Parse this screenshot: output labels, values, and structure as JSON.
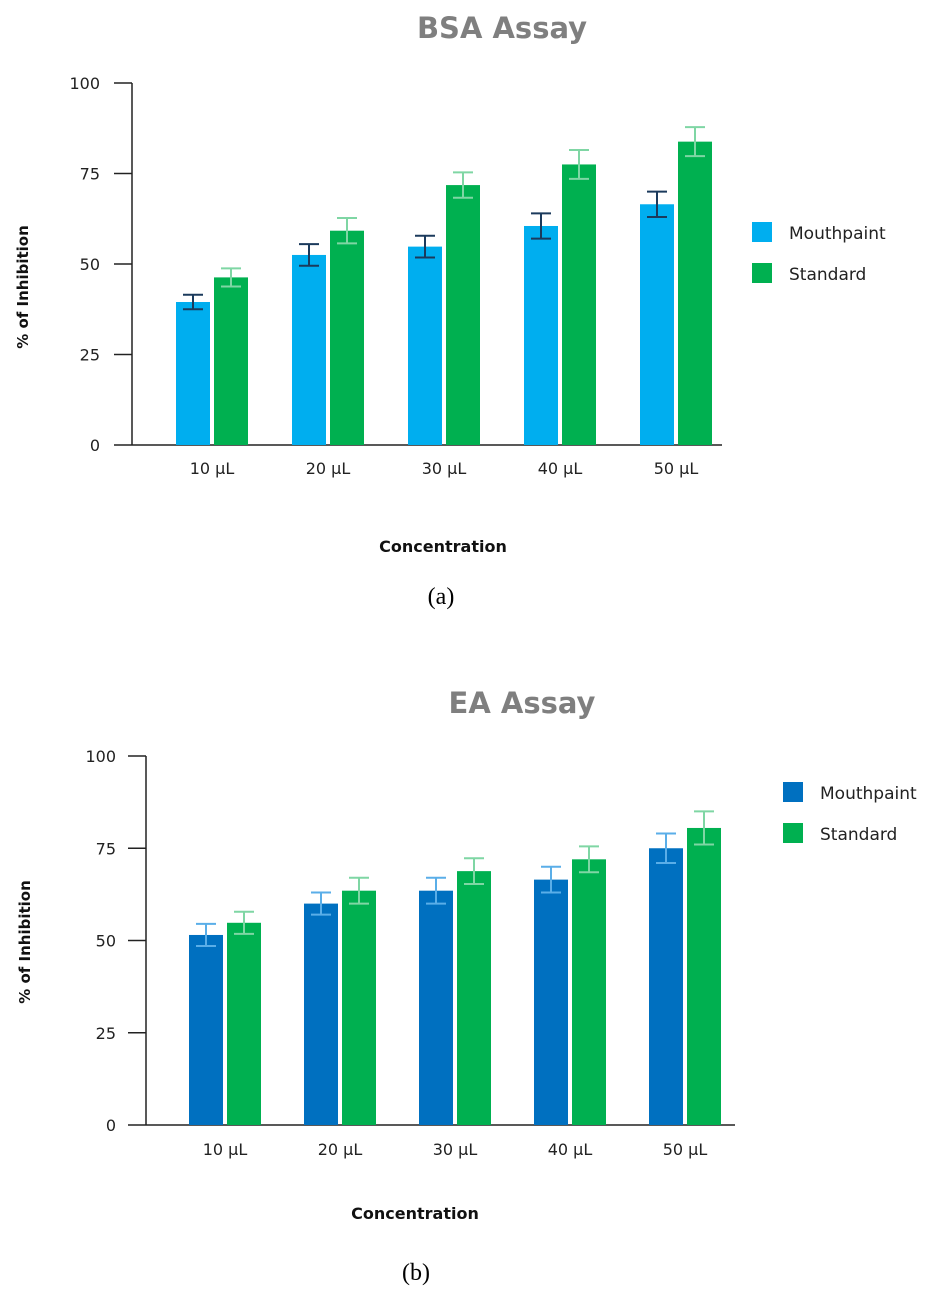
{
  "chart_data": [
    {
      "type": "bar",
      "title": "BSA Assay",
      "xlabel": "Concentration",
      "ylabel": "% of Inhibition",
      "ylim": [
        0,
        100
      ],
      "yticks": [
        0,
        25,
        50,
        75,
        100
      ],
      "categories": [
        "10 µL",
        "20 µL",
        "30 µL",
        "40 µL",
        "50 µL"
      ],
      "series": [
        {
          "name": "Mouthpaint",
          "color": "#00aeef",
          "error_color": "#1b3a5c",
          "values": [
            39.5,
            52.5,
            54.8,
            60.5,
            66.5
          ],
          "errors": [
            2.0,
            3.0,
            3.0,
            3.5,
            3.5
          ]
        },
        {
          "name": "Standard",
          "color": "#00b050",
          "error_color": "#7fd6a4",
          "values": [
            46.3,
            59.2,
            71.8,
            77.5,
            83.8
          ],
          "errors": [
            2.5,
            3.5,
            3.5,
            4.0,
            4.0
          ]
        }
      ],
      "grid": false,
      "legend_position": "right",
      "caption": "(a)"
    },
    {
      "type": "bar",
      "title": "EA Assay",
      "xlabel": "Concentration",
      "ylabel": "% of Inhibition",
      "ylim": [
        0,
        100
      ],
      "yticks": [
        0,
        25,
        50,
        75,
        100
      ],
      "categories": [
        "10 µL",
        "20 µL",
        "30 µL",
        "40 µL",
        "50 µL"
      ],
      "series": [
        {
          "name": "Mouthpaint",
          "color": "#0070c0",
          "error_color": "#5aaee8",
          "values": [
            51.5,
            60.0,
            63.5,
            66.5,
            75.0
          ],
          "errors": [
            3.0,
            3.0,
            3.5,
            3.5,
            4.0
          ]
        },
        {
          "name": "Standard",
          "color": "#00b050",
          "error_color": "#7fd6a4",
          "values": [
            54.8,
            63.5,
            68.8,
            72.0,
            80.5
          ],
          "errors": [
            3.0,
            3.5,
            3.5,
            3.5,
            4.5
          ]
        }
      ],
      "grid": false,
      "legend_position": "top-right",
      "caption": "(b)"
    }
  ]
}
